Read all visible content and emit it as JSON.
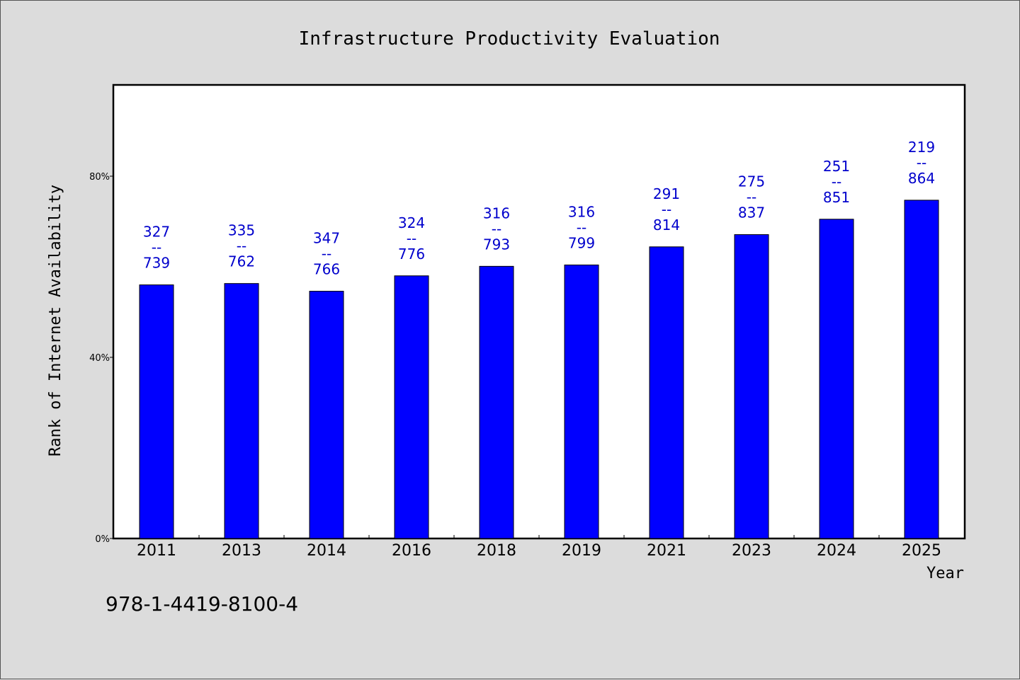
{
  "chart_data": {
    "type": "bar",
    "title": "Infrastructure Productivity Evaluation",
    "xlabel": "Year",
    "ylabel": "Rank of Internet Availability",
    "categories": [
      "2011",
      "2013",
      "2014",
      "2016",
      "2018",
      "2019",
      "2021",
      "2023",
      "2024",
      "2025"
    ],
    "series": [
      {
        "values": [
          56,
          56.3,
          54.6,
          58,
          60.1,
          60.4,
          64.4,
          67.1,
          70.5,
          74.7
        ],
        "labels_top": [
          "327",
          "335",
          "347",
          "324",
          "316",
          "316",
          "291",
          "275",
          "251",
          "219"
        ],
        "labels_bottom": [
          "739",
          "762",
          "766",
          "776",
          "793",
          "799",
          "814",
          "837",
          "851",
          "864"
        ],
        "color": "#0000ff"
      }
    ],
    "label_separator": "--",
    "ylim": [
      0,
      100
    ],
    "yticks": [
      {
        "value": 0,
        "label": "0%"
      },
      {
        "value": 40,
        "label": "40%"
      },
      {
        "value": 80,
        "label": "80%"
      }
    ],
    "grid": false,
    "legend": "none",
    "footer_text": "978-1-4419-8100-4",
    "colors": {
      "bar": "#0000ff",
      "label": "#0000cc",
      "background": "#dcdcdc",
      "plot_bg": "#ffffff"
    }
  }
}
